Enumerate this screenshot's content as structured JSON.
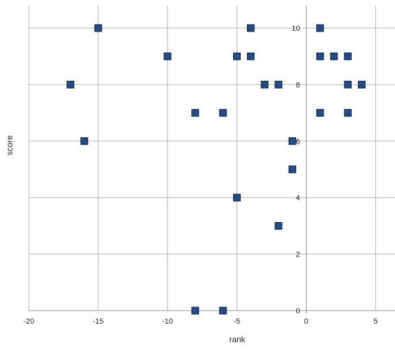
{
  "chart_data": {
    "type": "scatter",
    "title": "",
    "xlabel": "rank",
    "ylabel": "score",
    "xlim": [
      -20,
      6.4
    ],
    "ylim": [
      0,
      10.8
    ],
    "x_ticks": [
      -20,
      -15,
      -10,
      -5,
      0,
      5
    ],
    "y_ticks": [
      0,
      2,
      4,
      6,
      8,
      10
    ],
    "grid": true,
    "legend": "none",
    "marker": "square",
    "colors": {
      "marker_fill": "#1f4e8c",
      "marker_stroke": "#0a1a33",
      "grid": "#b3b3b3"
    },
    "series": [
      {
        "points": [
          {
            "x": -15,
            "y": 10
          },
          {
            "x": -4,
            "y": 10
          },
          {
            "x": 1,
            "y": 10
          },
          {
            "x": -10,
            "y": 9
          },
          {
            "x": -5,
            "y": 9
          },
          {
            "x": -4,
            "y": 9
          },
          {
            "x": 1,
            "y": 9
          },
          {
            "x": 2,
            "y": 9
          },
          {
            "x": 3,
            "y": 9
          },
          {
            "x": -17,
            "y": 8
          },
          {
            "x": -3,
            "y": 8
          },
          {
            "x": -2,
            "y": 8
          },
          {
            "x": 3,
            "y": 8
          },
          {
            "x": 4,
            "y": 8
          },
          {
            "x": -8,
            "y": 7
          },
          {
            "x": -6,
            "y": 7
          },
          {
            "x": 1,
            "y": 7
          },
          {
            "x": 3,
            "y": 7
          },
          {
            "x": -16,
            "y": 6
          },
          {
            "x": -1,
            "y": 6
          },
          {
            "x": -1,
            "y": 5
          },
          {
            "x": -5,
            "y": 4
          },
          {
            "x": -2,
            "y": 3
          },
          {
            "x": -8,
            "y": 0
          },
          {
            "x": -6,
            "y": 0
          }
        ]
      }
    ]
  }
}
